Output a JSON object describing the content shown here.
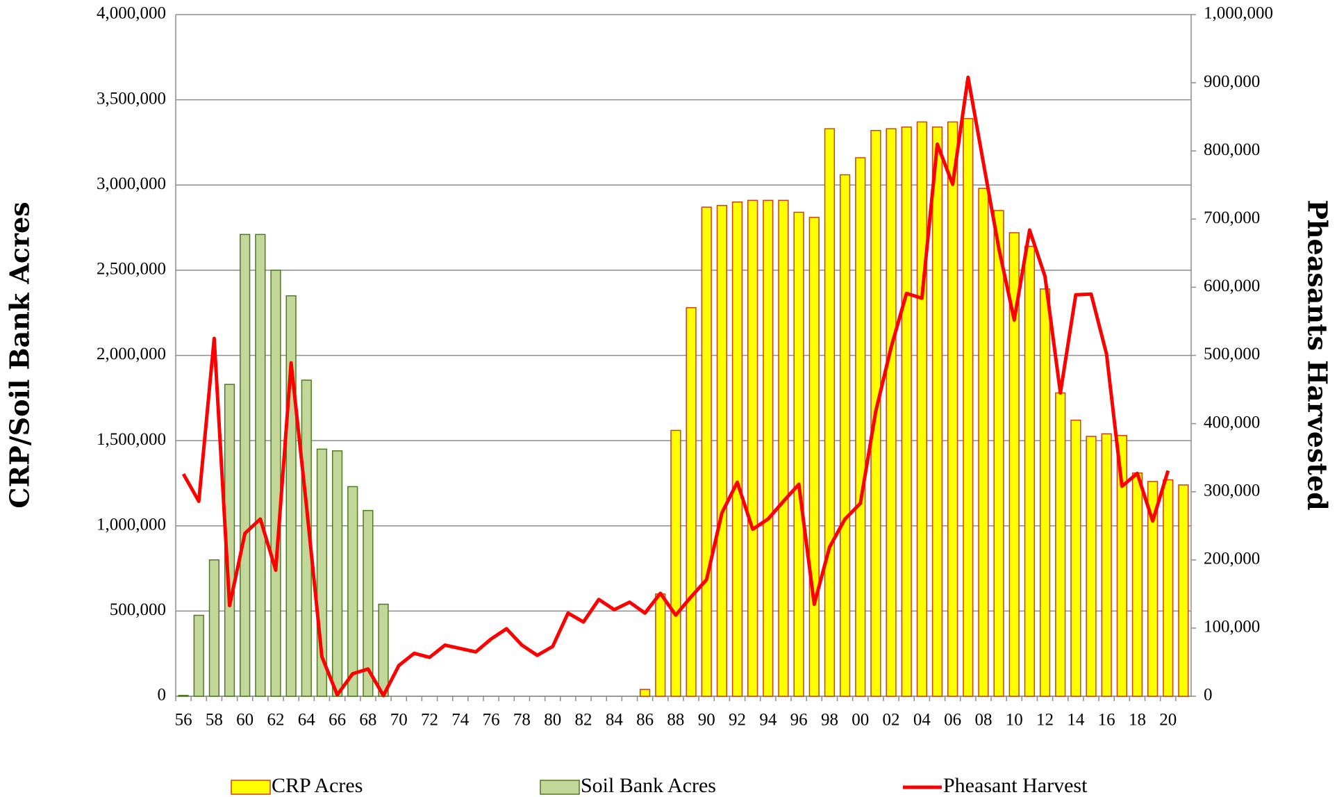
{
  "chart_data": {
    "type": "bar_line",
    "y_label": "CRP/Soil Bank Acres",
    "y2_label": "Pheasants Harvested",
    "categories": [
      "56",
      null,
      "58",
      null,
      "60",
      null,
      "62",
      null,
      "64",
      null,
      "66",
      null,
      "68",
      null,
      "70",
      null,
      "72",
      null,
      "74",
      null,
      "76",
      null,
      "78",
      null,
      "80",
      null,
      "82",
      null,
      "84",
      null,
      "86",
      null,
      "88",
      null,
      "90",
      null,
      "92",
      null,
      "94",
      null,
      "96",
      null,
      "98",
      null,
      "00",
      null,
      "02",
      null,
      "04",
      null,
      "06",
      null,
      "08",
      null,
      "10",
      null,
      "12",
      null,
      "14",
      null,
      "16",
      null,
      "18",
      null,
      "20",
      null
    ],
    "series": [
      {
        "name": "CRP Acres",
        "type": "bar",
        "color": "#ffff00",
        "stroke": "#d04010",
        "axis": "y",
        "values": [
          null,
          null,
          null,
          null,
          null,
          null,
          null,
          null,
          null,
          null,
          null,
          null,
          null,
          null,
          null,
          null,
          null,
          null,
          null,
          null,
          null,
          null,
          null,
          null,
          null,
          null,
          null,
          null,
          null,
          null,
          40000,
          600000,
          1560000,
          2280000,
          2870000,
          2880000,
          2900000,
          2910000,
          2910000,
          2910000,
          2840000,
          2810000,
          3330000,
          3060000,
          3160000,
          3320000,
          3330000,
          3340000,
          3370000,
          3340000,
          3370000,
          3390000,
          2980000,
          2850000,
          2720000,
          2640000,
          2390000,
          1780000,
          1620000,
          1525000,
          1540000,
          1530000,
          1310000,
          1260000,
          1270000,
          1240000
        ]
      },
      {
        "name": "Soil Bank Acres",
        "type": "bar",
        "color": "#c4d79b",
        "stroke": "#4f7a1f",
        "axis": "y",
        "values": [
          5000,
          475000,
          800000,
          1830000,
          2710000,
          2710000,
          2500000,
          2350000,
          1855000,
          1450000,
          1440000,
          1230000,
          1090000,
          540000,
          null,
          null,
          null,
          null,
          null,
          null,
          null,
          null,
          null,
          null,
          null,
          null,
          null,
          null,
          null,
          null,
          null,
          null,
          null,
          null,
          null,
          null,
          null,
          null,
          null,
          null,
          null,
          null,
          null,
          null,
          null,
          null,
          null,
          null,
          null,
          null,
          null,
          null,
          null,
          null,
          null,
          null,
          null,
          null,
          null,
          null,
          null,
          null,
          null,
          null,
          null,
          null
        ]
      },
      {
        "name": "Pheasant Harvest",
        "type": "line",
        "color": "#ff0000",
        "axis": "y2",
        "values": [
          326000,
          286000,
          525000,
          133000,
          239000,
          260000,
          185000,
          489000,
          279000,
          58000,
          2000,
          33000,
          40000,
          1000,
          45000,
          63000,
          57000,
          75000,
          70000,
          65000,
          84000,
          99000,
          75000,
          60000,
          73000,
          122000,
          109000,
          142000,
          127000,
          138000,
          122000,
          151000,
          119000,
          146000,
          171000,
          269000,
          314000,
          245000,
          260000,
          286000,
          311000,
          135000,
          219000,
          260000,
          283000,
          418000,
          512000,
          591000,
          584000,
          810000,
          751000,
          908000,
          782000,
          657000,
          552000,
          684000,
          616000,
          445000,
          589000,
          590000,
          502000,
          308000,
          327000,
          257000,
          331000,
          null
        ]
      }
    ],
    "ylim": [
      0,
      4000000
    ],
    "yticks": [
      0,
      {
        "value": 500000,
        "label": "500,000"
      },
      {
        "value": 1000000,
        "label": "1,000,000"
      },
      {
        "value": 1500000,
        "label": "1,500,000"
      },
      {
        "value": 2000000,
        "label": "2,000,000"
      },
      {
        "value": 2500000,
        "label": "2,500,000"
      },
      {
        "value": 3000000,
        "label": "3,000,000"
      },
      {
        "value": 3500000,
        "label": "3,500,000"
      },
      {
        "value": 4000000,
        "label": "4,000,000"
      }
    ],
    "y2lim": [
      0,
      1000000
    ],
    "y2ticks": [
      0,
      {
        "value": 100000,
        "label": "100,000"
      },
      {
        "value": 200000,
        "label": "200,000"
      },
      {
        "value": 300000,
        "label": "300,000"
      },
      {
        "value": 400000,
        "label": "400,000"
      },
      {
        "value": 500000,
        "label": "500,000"
      },
      {
        "value": 600000,
        "label": "600,000"
      },
      {
        "value": 700000,
        "label": "700,000"
      },
      {
        "value": 800000,
        "label": "800,000"
      },
      {
        "value": 900000,
        "label": "900,000"
      },
      {
        "value": 1000000,
        "label": "1,000,000"
      }
    ],
    "grid": true,
    "legend": "bottom"
  }
}
